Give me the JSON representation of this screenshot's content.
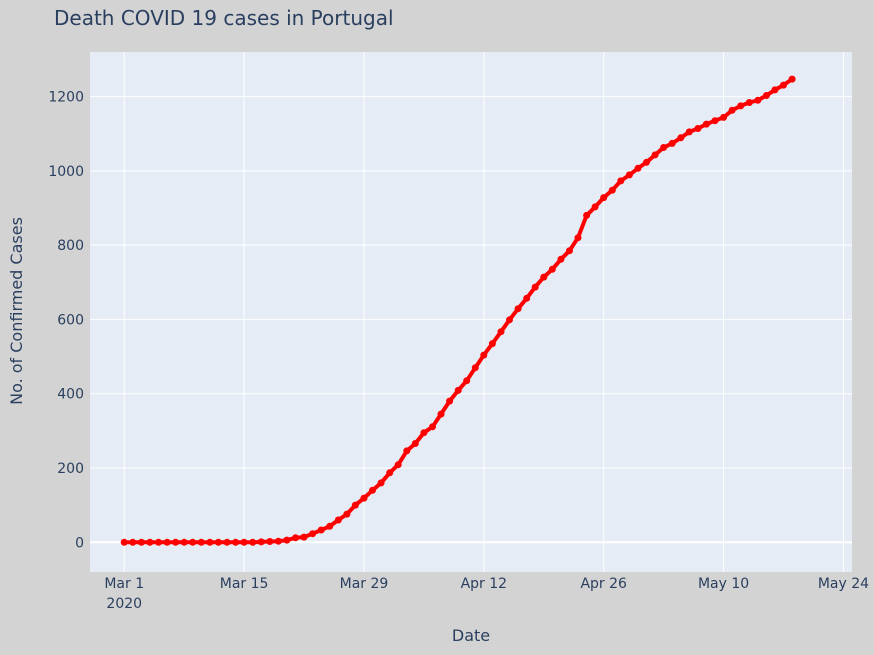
{
  "chart_data": {
    "type": "line",
    "title": "Death COVID 19 cases in Portugal",
    "xlabel": "Date",
    "ylabel": "No. of Confirmed Cases",
    "x_start": "2020-03-01",
    "xlim": [
      "2020-02-26",
      "2020-05-25"
    ],
    "ylim": [
      -80,
      1320
    ],
    "x_ticks": [
      {
        "date": "2020-03-01",
        "label": "Mar 1",
        "sublabel": "2020"
      },
      {
        "date": "2020-03-15",
        "label": "Mar 15",
        "sublabel": ""
      },
      {
        "date": "2020-03-29",
        "label": "Mar 29",
        "sublabel": ""
      },
      {
        "date": "2020-04-12",
        "label": "Apr 12",
        "sublabel": ""
      },
      {
        "date": "2020-04-26",
        "label": "Apr 26",
        "sublabel": ""
      },
      {
        "date": "2020-05-10",
        "label": "May 10",
        "sublabel": ""
      },
      {
        "date": "2020-05-24",
        "label": "May 24",
        "sublabel": ""
      }
    ],
    "y_ticks": [
      0,
      200,
      400,
      600,
      800,
      1000,
      1200
    ],
    "grid": true,
    "legend": "none",
    "colors": {
      "line": "#ff0000",
      "plot_bg": "#e5ecf6",
      "paper_bg": "#d3d3d3",
      "grid": "#ffffff",
      "text": "#2a3f5f"
    },
    "series": [
      {
        "values": [
          0,
          0,
          0,
          0,
          0,
          0,
          0,
          0,
          0,
          0,
          0,
          0,
          0,
          0,
          0,
          0,
          1,
          2,
          3,
          6,
          12,
          14,
          23,
          33,
          43,
          60,
          76,
          100,
          119,
          140,
          160,
          187,
          209,
          246,
          266,
          295,
          311,
          345,
          380,
          409,
          435,
          470,
          504,
          535,
          567,
          599,
          629,
          657,
          687,
          714,
          735,
          762,
          785,
          820,
          880,
          903,
          928,
          948,
          973,
          989,
          1007,
          1023,
          1043,
          1063,
          1074,
          1089,
          1105,
          1114,
          1126,
          1135,
          1144,
          1163,
          1175,
          1184,
          1190,
          1203,
          1218,
          1231,
          1247
        ]
      }
    ]
  }
}
